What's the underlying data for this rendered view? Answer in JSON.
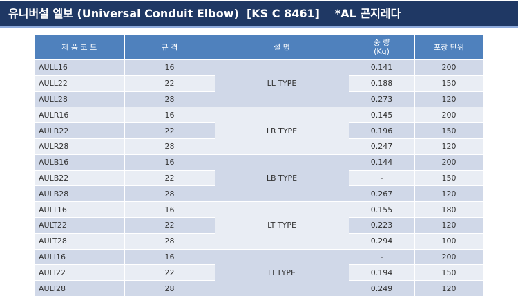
{
  "header": {
    "title": "유니버설 엘보 (Universal Conduit Elbow)  [KS C 8461]",
    "note": "*AL 곤지레다"
  },
  "table": {
    "columns": [
      "제 품 코 드",
      "규 격",
      "설 명",
      [
        "중 량",
        "(Kg)"
      ],
      "포장 단위"
    ],
    "groups": [
      {
        "type": "LL TYPE",
        "rows": [
          [
            "AULL16",
            "16",
            "0.141",
            "200"
          ],
          [
            "AULL22",
            "22",
            "0.188",
            "150"
          ],
          [
            "AULL28",
            "28",
            "0.273",
            "120"
          ]
        ]
      },
      {
        "type": "LR TYPE",
        "rows": [
          [
            "AULR16",
            "16",
            "0.145",
            "200"
          ],
          [
            "AULR22",
            "22",
            "0.196",
            "150"
          ],
          [
            "AULR28",
            "28",
            "0.247",
            "120"
          ]
        ]
      },
      {
        "type": "LB TYPE",
        "rows": [
          [
            "AULB16",
            "16",
            "0.144",
            "200"
          ],
          [
            "AULB22",
            "22",
            "-",
            "150"
          ],
          [
            "AULB28",
            "28",
            "0.267",
            "120"
          ]
        ]
      },
      {
        "type": "LT TYPE",
        "rows": [
          [
            "AULT16",
            "16",
            "0.155",
            "180"
          ],
          [
            "AULT22",
            "22",
            "0.223",
            "120"
          ],
          [
            "AULT28",
            "28",
            "0.294",
            "100"
          ]
        ]
      },
      {
        "type": "LI TYPE",
        "rows": [
          [
            "AULI16",
            "16",
            "-",
            "200"
          ],
          [
            "AULI22",
            "22",
            "0.194",
            "150"
          ],
          [
            "AULI28",
            "28",
            "0.249",
            "120"
          ]
        ]
      }
    ]
  }
}
